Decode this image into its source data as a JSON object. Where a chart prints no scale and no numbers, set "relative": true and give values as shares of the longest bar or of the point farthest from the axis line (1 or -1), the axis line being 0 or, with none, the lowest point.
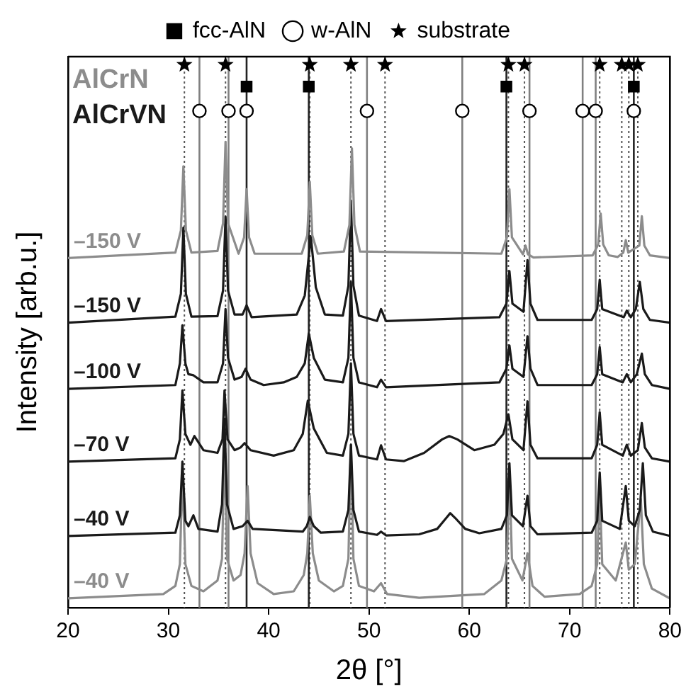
{
  "chart_data": {
    "type": "line",
    "relative": true,
    "xlabel": "2θ [°]",
    "ylabel": "Intensity [arb.u.]",
    "xlim": [
      20,
      80
    ],
    "xticks": [
      20,
      30,
      40,
      50,
      60,
      70,
      80
    ],
    "legend": "top",
    "marker": "none",
    "line_style": "solid",
    "annotations": [
      "AlCrN",
      "AlCrVN"
    ],
    "series": [
      {
        "name": "–150 V",
        "color": "#8c8c8c",
        "x": [
          20,
          30.7,
          31.25,
          31.5,
          31.75,
          32.3,
          34.9,
          35.45,
          35.7,
          35.95,
          37.0,
          37.55,
          37.8,
          38.05,
          38.6,
          43.3,
          43.85,
          44.1,
          44.35,
          44.9,
          47.5,
          48.05,
          48.3,
          48.55,
          49.1,
          63.2,
          63.75,
          64.0,
          64.25,
          65.35,
          65.6,
          65.85,
          66.4,
          72.3,
          72.85,
          73.1,
          73.35,
          73.9,
          74.8,
          75.35,
          75.6,
          75.85,
          76.95,
          77.2,
          77.45,
          78.0,
          80
        ],
        "values": [
          0.644,
          0.654,
          0.695,
          0.813,
          0.695,
          0.654,
          0.657,
          0.708,
          0.858,
          0.708,
          0.652,
          0.682,
          0.771,
          0.682,
          0.652,
          0.652,
          0.686,
          0.784,
          0.686,
          0.652,
          0.656,
          0.705,
          0.846,
          0.705,
          0.656,
          0.652,
          0.682,
          0.771,
          0.682,
          0.651,
          0.667,
          0.651,
          0.645,
          0.649,
          0.669,
          0.726,
          0.669,
          0.649,
          0.646,
          0.654,
          0.677,
          0.654,
          0.667,
          0.721,
          0.667,
          0.649,
          0.644
        ]
      },
      {
        "name": "–150 V",
        "color": "#1a1a1a",
        "x": [
          20,
          30.7,
          31.25,
          31.5,
          31.75,
          32.3,
          34.9,
          35.45,
          35.7,
          35.95,
          36.6,
          37.4,
          37.8,
          38.3,
          42.8,
          43.6,
          44.2,
          44.7,
          45.6,
          47.4,
          47.95,
          48.2,
          48.45,
          49.0,
          50.8,
          51.2,
          51.7,
          63.0,
          63.7,
          64.0,
          64.3,
          65.4,
          65.8,
          66.1,
          66.8,
          72.2,
          72.75,
          73.0,
          73.25,
          75.4,
          75.7,
          76.1,
          76.6,
          77.0,
          77.35,
          78.0,
          80
        ],
        "values": [
          0.525,
          0.536,
          0.578,
          0.7,
          0.578,
          0.536,
          0.537,
          0.584,
          0.72,
          0.584,
          0.54,
          0.54,
          0.557,
          0.535,
          0.54,
          0.575,
          0.684,
          0.59,
          0.54,
          0.538,
          0.593,
          0.75,
          0.593,
          0.538,
          0.528,
          0.55,
          0.528,
          0.535,
          0.56,
          0.62,
          0.56,
          0.545,
          0.64,
          0.56,
          0.53,
          0.53,
          0.55,
          0.604,
          0.55,
          0.535,
          0.547,
          0.535,
          0.55,
          0.6,
          0.55,
          0.53,
          0.525
        ]
      },
      {
        "name": "–100 V",
        "color": "#1a1a1a",
        "x": [
          20,
          30.7,
          31.15,
          31.4,
          31.7,
          32.0,
          32.5,
          33.5,
          34.9,
          35.45,
          35.7,
          35.95,
          36.6,
          37.3,
          37.7,
          38.2,
          39.5,
          41.5,
          42.8,
          43.6,
          44.0,
          44.5,
          45.6,
          47.4,
          47.95,
          48.2,
          48.45,
          49.0,
          50.8,
          51.2,
          51.7,
          63.0,
          63.7,
          64.0,
          64.3,
          65.4,
          65.8,
          66.1,
          66.8,
          72.2,
          72.75,
          73.0,
          73.25,
          75.3,
          75.7,
          76.1,
          76.7,
          77.2,
          77.5,
          78.2,
          80
        ],
        "values": [
          0.403,
          0.41,
          0.45,
          0.52,
          0.45,
          0.43,
          0.428,
          0.415,
          0.415,
          0.45,
          0.55,
          0.46,
          0.42,
          0.425,
          0.44,
          0.42,
          0.41,
          0.415,
          0.425,
          0.45,
          0.505,
          0.46,
          0.42,
          0.415,
          0.46,
          0.6,
          0.46,
          0.415,
          0.406,
          0.42,
          0.406,
          0.415,
          0.44,
          0.483,
          0.44,
          0.425,
          0.5,
          0.44,
          0.41,
          0.41,
          0.43,
          0.48,
          0.43,
          0.415,
          0.43,
          0.415,
          0.43,
          0.468,
          0.43,
          0.41,
          0.403
        ]
      },
      {
        "name": "–70 V",
        "color": "#1a1a1a",
        "x": [
          20,
          30.7,
          31.15,
          31.4,
          31.7,
          32.2,
          32.6,
          33.5,
          34.9,
          35.4,
          35.6,
          35.9,
          36.6,
          37.2,
          37.6,
          38.2,
          40.5,
          42.5,
          43.4,
          43.9,
          44.5,
          45.8,
          47.4,
          47.95,
          48.2,
          48.45,
          49.0,
          50.8,
          51.2,
          51.7,
          53.5,
          55.5,
          57.3,
          58.0,
          58.8,
          60.5,
          62.5,
          63.4,
          63.9,
          64.3,
          65.4,
          65.8,
          66.1,
          66.8,
          72.2,
          72.75,
          73.0,
          73.25,
          75.3,
          75.7,
          76.1,
          76.8,
          77.2,
          77.5,
          78.2,
          80
        ],
        "values": [
          0.269,
          0.275,
          0.31,
          0.4,
          0.32,
          0.3,
          0.316,
          0.29,
          0.285,
          0.31,
          0.4,
          0.31,
          0.29,
          0.295,
          0.303,
          0.29,
          0.28,
          0.29,
          0.32,
          0.381,
          0.33,
          0.285,
          0.28,
          0.32,
          0.45,
          0.32,
          0.28,
          0.273,
          0.299,
          0.273,
          0.27,
          0.285,
          0.31,
          0.316,
          0.31,
          0.29,
          0.3,
          0.32,
          0.356,
          0.31,
          0.29,
          0.38,
          0.3,
          0.275,
          0.275,
          0.3,
          0.36,
          0.3,
          0.28,
          0.3,
          0.28,
          0.29,
          0.34,
          0.295,
          0.275,
          0.269
        ]
      },
      {
        "name": "–40 V",
        "color": "#1a1a1a",
        "x": [
          20,
          30.7,
          31.15,
          31.4,
          31.7,
          32.0,
          32.5,
          33.0,
          34.9,
          35.35,
          35.6,
          35.85,
          36.5,
          37.4,
          37.9,
          38.4,
          43.4,
          43.8,
          44.1,
          44.5,
          45.2,
          47.4,
          47.95,
          48.2,
          48.45,
          49.0,
          50.8,
          51.2,
          51.7,
          55.0,
          56.8,
          57.7,
          58.1,
          58.6,
          59.6,
          61.0,
          63.2,
          63.75,
          64.0,
          64.25,
          65.35,
          65.8,
          66.1,
          66.8,
          72.2,
          72.75,
          73.0,
          73.25,
          75.0,
          75.6,
          75.9,
          76.5,
          77.0,
          77.3,
          77.6,
          78.3,
          80
        ],
        "values": [
          0.132,
          0.138,
          0.17,
          0.269,
          0.16,
          0.15,
          0.17,
          0.145,
          0.14,
          0.19,
          0.348,
          0.19,
          0.145,
          0.15,
          0.16,
          0.145,
          0.14,
          0.15,
          0.167,
          0.15,
          0.138,
          0.14,
          0.18,
          0.3,
          0.18,
          0.14,
          0.134,
          0.14,
          0.133,
          0.135,
          0.145,
          0.165,
          0.174,
          0.165,
          0.145,
          0.137,
          0.145,
          0.17,
          0.266,
          0.17,
          0.15,
          0.206,
          0.15,
          0.135,
          0.138,
          0.16,
          0.249,
          0.16,
          0.145,
          0.224,
          0.16,
          0.15,
          0.18,
          0.266,
          0.17,
          0.14,
          0.132
        ]
      },
      {
        "name": "–40 V",
        "color": "#8c8c8c",
        "x": [
          20,
          29.5,
          30.7,
          31.15,
          31.4,
          31.7,
          32.3,
          33.5,
          34.9,
          35.35,
          35.6,
          35.85,
          36.5,
          37.2,
          37.6,
          37.9,
          38.2,
          38.9,
          40.5,
          42.5,
          43.5,
          43.85,
          44.1,
          44.4,
          45.0,
          46.5,
          47.4,
          47.95,
          48.2,
          48.45,
          49.0,
          50.5,
          51.2,
          51.8,
          55,
          61.5,
          63.2,
          63.75,
          64.0,
          64.25,
          65.3,
          65.8,
          66.3,
          67.5,
          71,
          72.2,
          72.75,
          73.0,
          73.25,
          74.6,
          75.6,
          75.9,
          76.5,
          77.1,
          77.4,
          78.2,
          80
        ],
        "values": [
          0.017,
          0.025,
          0.04,
          0.08,
          0.25,
          0.08,
          0.04,
          0.03,
          0.05,
          0.09,
          0.3,
          0.09,
          0.05,
          0.06,
          0.1,
          0.224,
          0.1,
          0.045,
          0.025,
          0.03,
          0.06,
          0.1,
          0.206,
          0.1,
          0.05,
          0.03,
          0.04,
          0.09,
          0.3,
          0.09,
          0.04,
          0.03,
          0.045,
          0.025,
          0.018,
          0.025,
          0.05,
          0.09,
          0.25,
          0.09,
          0.05,
          0.1,
          0.04,
          0.02,
          0.025,
          0.04,
          0.08,
          0.22,
          0.08,
          0.05,
          0.12,
          0.07,
          0.08,
          0.2,
          0.08,
          0.035,
          0.017
        ]
      },
      {
        "name": "fcc-AlN",
        "type": "scatter",
        "marker": "square",
        "color": "#000000",
        "x": [
          37.8,
          44.0,
          63.7,
          76.4
        ],
        "values": [
          0.96,
          0.96,
          0.96,
          0.96
        ]
      },
      {
        "name": "w-AlN",
        "type": "scatter",
        "marker": "circle",
        "color": "#000000",
        "x": [
          33.1,
          36.0,
          37.8,
          49.8,
          59.3,
          66.0,
          71.3,
          72.6,
          76.4
        ],
        "values": [
          0.915,
          0.915,
          0.915,
          0.915,
          0.915,
          0.915,
          0.915,
          0.915,
          0.915
        ]
      },
      {
        "name": "substrate",
        "type": "scatter",
        "marker": "star",
        "color": "#000000",
        "x": [
          31.6,
          35.7,
          44.1,
          48.2,
          51.6,
          63.9,
          65.5,
          73.0,
          75.2,
          75.9,
          76.8
        ],
        "values": [
          1,
          1,
          1,
          1,
          1,
          1,
          1,
          1,
          1,
          1,
          1
        ]
      }
    ],
    "ref_lines": [
      {
        "axis": "x",
        "value": 31.6,
        "line_style": "dotted",
        "color": "#555555"
      },
      {
        "axis": "x",
        "value": 35.7,
        "line_style": "dotted",
        "color": "#555555"
      },
      {
        "axis": "x",
        "value": 44.1,
        "line_style": "dotted",
        "color": "#555555"
      },
      {
        "axis": "x",
        "value": 48.2,
        "line_style": "dotted",
        "color": "#555555"
      },
      {
        "axis": "x",
        "value": 51.6,
        "line_style": "dotted",
        "color": "#555555"
      },
      {
        "axis": "x",
        "value": 63.9,
        "line_style": "dotted",
        "color": "#555555"
      },
      {
        "axis": "x",
        "value": 65.5,
        "line_style": "dotted",
        "color": "#555555"
      },
      {
        "axis": "x",
        "value": 73.0,
        "line_style": "dotted",
        "color": "#555555"
      },
      {
        "axis": "x",
        "value": 75.2,
        "line_style": "dotted",
        "color": "#555555"
      },
      {
        "axis": "x",
        "value": 75.9,
        "line_style": "dotted",
        "color": "#555555"
      },
      {
        "axis": "x",
        "value": 76.8,
        "line_style": "dotted",
        "color": "#555555"
      },
      {
        "axis": "x",
        "value": 37.8,
        "line_style": "solid",
        "color": "#222222"
      },
      {
        "axis": "x",
        "value": 44.0,
        "line_style": "solid",
        "color": "#222222"
      },
      {
        "axis": "x",
        "value": 63.7,
        "line_style": "solid",
        "color": "#222222"
      },
      {
        "axis": "x",
        "value": 76.4,
        "line_style": "solid",
        "color": "#222222"
      },
      {
        "axis": "x",
        "value": 33.1,
        "line_style": "solid",
        "color": "#808080"
      },
      {
        "axis": "x",
        "value": 36.0,
        "line_style": "solid",
        "color": "#808080"
      },
      {
        "axis": "x",
        "value": 49.8,
        "line_style": "solid",
        "color": "#808080"
      },
      {
        "axis": "x",
        "value": 59.3,
        "line_style": "solid",
        "color": "#808080"
      },
      {
        "axis": "x",
        "value": 66.0,
        "line_style": "solid",
        "color": "#808080"
      },
      {
        "axis": "x",
        "value": 71.3,
        "line_style": "solid",
        "color": "#808080"
      },
      {
        "axis": "x",
        "value": 72.6,
        "line_style": "solid",
        "color": "#808080"
      }
    ]
  }
}
